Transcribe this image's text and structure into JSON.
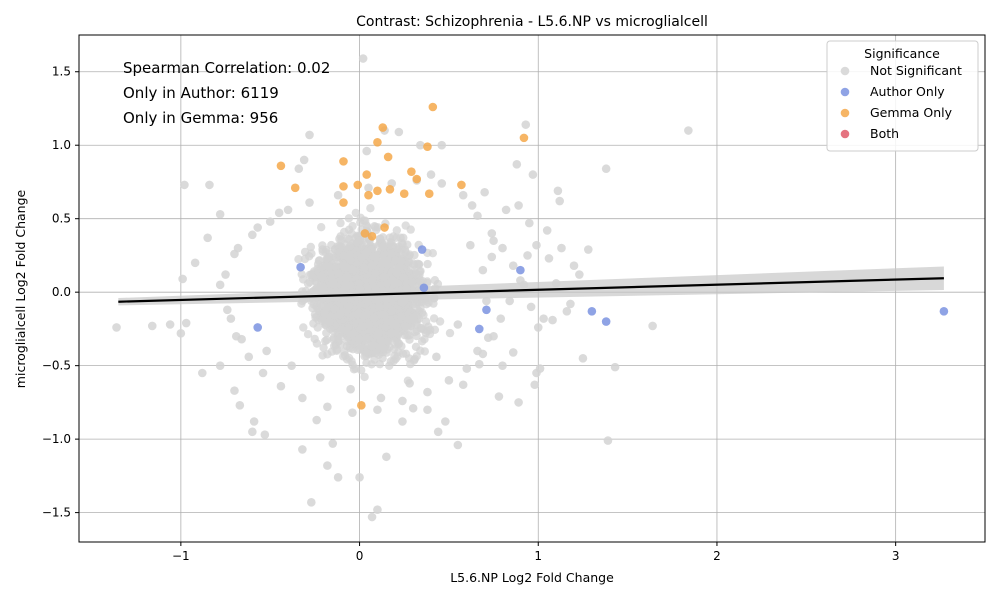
{
  "chart_data": {
    "type": "scatter",
    "title": "Contrast: Schizophrenia - L5.6.NP vs microglialcell",
    "xlabel": "L5.6.NP Log2 Fold Change",
    "ylabel": "microglialcell Log2 Fold Change",
    "xlim": [
      -1.57,
      3.5
    ],
    "ylim": [
      -1.7,
      1.75
    ],
    "x_ticks": [
      -1,
      0,
      1,
      2,
      3
    ],
    "x_tick_labels": [
      "−1",
      "0",
      "1",
      "2",
      "3"
    ],
    "y_ticks": [
      -1.5,
      -1.0,
      -0.5,
      0.0,
      0.5,
      1.0,
      1.5
    ],
    "y_tick_labels": [
      "−1.5",
      "−1.0",
      "−0.5",
      "0.0",
      "0.5",
      "1.0",
      "1.5"
    ],
    "grid": true,
    "annotations": [
      "Spearman Correlation: 0.02",
      "Only in Author: 6119",
      "Only in Gemma: 956"
    ],
    "legend": {
      "title": "Significance",
      "position": "top-right",
      "entries": [
        {
          "label": "Not Significant",
          "color": "#d3d3d3"
        },
        {
          "label": "Author Only",
          "color": "#7b93e0"
        },
        {
          "label": "Gemma Only",
          "color": "#f5a84a"
        },
        {
          "label": "Both",
          "color": "#e05a6a"
        }
      ]
    },
    "regression": {
      "x": [
        -1.35,
        3.27
      ],
      "y": [
        -0.065,
        0.095
      ],
      "ci_halfwidth_start": 0.025,
      "ci_halfwidth_end": 0.08
    },
    "series": [
      {
        "name": "Not Significant",
        "color": "#d3d3d3",
        "points": [
          [
            1.84,
            1.1
          ],
          [
            1.38,
            0.84
          ],
          [
            1.11,
            0.69
          ],
          [
            1.12,
            0.62
          ],
          [
            1.28,
            0.29
          ],
          [
            1.23,
            0.12
          ],
          [
            1.16,
            -0.13
          ],
          [
            1.25,
            -0.45
          ],
          [
            1.43,
            -0.51
          ],
          [
            1.39,
            -1.01
          ],
          [
            1.64,
            -0.23
          ],
          [
            0.93,
            1.14
          ],
          [
            0.88,
            0.87
          ],
          [
            0.89,
            0.59
          ],
          [
            0.97,
            0.8
          ],
          [
            0.95,
            0.47
          ],
          [
            1.05,
            0.42
          ],
          [
            1.06,
            0.23
          ],
          [
            0.99,
            0.32
          ],
          [
            0.94,
            0.25
          ],
          [
            0.92,
            0.05
          ],
          [
            0.96,
            -0.1
          ],
          [
            1.0,
            -0.24
          ],
          [
            1.03,
            -0.18
          ],
          [
            0.98,
            -0.63
          ],
          [
            0.89,
            -0.75
          ],
          [
            0.86,
            -0.41
          ],
          [
            0.8,
            -0.5
          ],
          [
            0.78,
            -0.71
          ],
          [
            0.74,
            0.24
          ],
          [
            0.7,
            0.68
          ],
          [
            0.63,
            0.59
          ],
          [
            0.62,
            0.32
          ],
          [
            0.71,
            -0.06
          ],
          [
            0.66,
            -0.4
          ],
          [
            0.58,
            -0.63
          ],
          [
            0.55,
            -1.04
          ],
          [
            0.44,
            -0.95
          ],
          [
            0.38,
            -0.8
          ],
          [
            0.34,
            1.0
          ],
          [
            0.46,
            1.0
          ],
          [
            0.4,
            0.8
          ],
          [
            0.14,
            1.1
          ],
          [
            0.22,
            1.09
          ],
          [
            0.04,
            0.96
          ],
          [
            0.02,
            1.59
          ],
          [
            -0.28,
            1.07
          ],
          [
            -0.31,
            0.9
          ],
          [
            -0.34,
            0.84
          ],
          [
            -0.98,
            0.73
          ],
          [
            -0.84,
            0.73
          ],
          [
            -0.78,
            0.53
          ],
          [
            -0.85,
            0.37
          ],
          [
            -0.99,
            0.09
          ],
          [
            -0.92,
            0.2
          ],
          [
            -1.06,
            -0.22
          ],
          [
            -1.0,
            -0.28
          ],
          [
            -1.36,
            -0.24
          ],
          [
            -1.16,
            -0.23
          ],
          [
            -0.97,
            -0.21
          ],
          [
            -0.88,
            -0.55
          ],
          [
            -0.78,
            -0.5
          ],
          [
            -0.7,
            -0.67
          ],
          [
            -0.67,
            -0.77
          ],
          [
            -0.59,
            -0.88
          ],
          [
            -0.6,
            -0.95
          ],
          [
            -0.53,
            -0.97
          ],
          [
            -0.32,
            -1.07
          ],
          [
            -0.24,
            -0.87
          ],
          [
            -0.18,
            -1.18
          ],
          [
            -0.15,
            -1.03
          ],
          [
            -0.12,
            -1.26
          ],
          [
            -0.27,
            -1.43
          ],
          [
            0.0,
            -1.26
          ],
          [
            0.07,
            -1.53
          ],
          [
            0.1,
            -1.48
          ],
          [
            0.15,
            -1.12
          ],
          [
            0.24,
            -0.88
          ],
          [
            0.3,
            -0.79
          ],
          [
            0.48,
            -0.88
          ],
          [
            0.67,
            -0.49
          ],
          [
            0.72,
            -0.31
          ],
          [
            0.55,
            -0.22
          ],
          [
            0.43,
            -0.44
          ],
          [
            0.28,
            -0.62
          ],
          [
            0.12,
            -0.72
          ],
          [
            -0.05,
            -0.66
          ],
          [
            -0.22,
            -0.58
          ],
          [
            -0.38,
            -0.5
          ],
          [
            -0.52,
            -0.4
          ],
          [
            -0.66,
            -0.32
          ],
          [
            -0.72,
            -0.18
          ],
          [
            -0.78,
            0.05
          ],
          [
            -0.7,
            0.26
          ],
          [
            -0.6,
            0.39
          ],
          [
            -0.5,
            0.48
          ],
          [
            -0.4,
            0.56
          ],
          [
            -0.28,
            0.61
          ],
          [
            -0.12,
            0.66
          ],
          [
            0.05,
            0.71
          ],
          [
            0.18,
            0.74
          ],
          [
            0.32,
            0.76
          ],
          [
            0.46,
            0.74
          ],
          [
            0.58,
            0.66
          ],
          [
            0.66,
            0.52
          ],
          [
            0.74,
            0.4
          ],
          [
            0.8,
            0.3
          ],
          [
            0.86,
            0.18
          ],
          [
            0.9,
            0.08
          ],
          [
            0.84,
            -0.06
          ],
          [
            0.79,
            -0.18
          ],
          [
            0.75,
            -0.3
          ],
          [
            0.69,
            -0.42
          ],
          [
            0.6,
            -0.52
          ],
          [
            0.5,
            -0.6
          ],
          [
            0.38,
            -0.68
          ],
          [
            0.24,
            -0.74
          ],
          [
            0.1,
            -0.8
          ],
          [
            -0.04,
            -0.82
          ],
          [
            -0.18,
            -0.78
          ],
          [
            -0.32,
            -0.72
          ],
          [
            -0.44,
            -0.64
          ],
          [
            -0.54,
            -0.55
          ],
          [
            -0.62,
            -0.44
          ],
          [
            -0.69,
            -0.3
          ],
          [
            -0.74,
            -0.12
          ],
          [
            -0.75,
            0.12
          ],
          [
            -0.68,
            0.3
          ],
          [
            -0.57,
            0.44
          ],
          [
            -0.45,
            0.54
          ],
          [
            1.08,
            -0.19
          ],
          [
            1.13,
            0.3
          ],
          [
            1.2,
            0.18
          ],
          [
            1.18,
            -0.08
          ],
          [
            1.1,
            0.06
          ],
          [
            0.99,
            -0.55
          ],
          [
            1.01,
            -0.52
          ],
          [
            0.82,
            0.56
          ],
          [
            0.75,
            0.35
          ],
          [
            0.69,
            0.15
          ]
        ]
      },
      {
        "name": "Author Only",
        "color": "#7b93e0",
        "points": [
          [
            3.27,
            -0.13
          ],
          [
            1.38,
            -0.2
          ],
          [
            1.3,
            -0.13
          ],
          [
            0.9,
            0.15
          ],
          [
            0.67,
            -0.25
          ],
          [
            0.71,
            -0.12
          ],
          [
            -0.57,
            -0.24
          ],
          [
            -0.33,
            0.17
          ],
          [
            0.35,
            0.29
          ],
          [
            0.36,
            0.03
          ]
        ]
      },
      {
        "name": "Gemma Only",
        "color": "#f5a84a",
        "points": [
          [
            0.41,
            1.26
          ],
          [
            0.13,
            1.12
          ],
          [
            0.92,
            1.05
          ],
          [
            0.1,
            1.02
          ],
          [
            0.38,
            0.99
          ],
          [
            0.16,
            0.92
          ],
          [
            -0.09,
            0.89
          ],
          [
            -0.44,
            0.86
          ],
          [
            0.29,
            0.82
          ],
          [
            0.04,
            0.8
          ],
          [
            0.32,
            0.77
          ],
          [
            0.57,
            0.73
          ],
          [
            -0.36,
            0.71
          ],
          [
            -0.01,
            0.73
          ],
          [
            -0.09,
            0.72
          ],
          [
            0.17,
            0.7
          ],
          [
            0.1,
            0.69
          ],
          [
            0.39,
            0.67
          ],
          [
            0.25,
            0.67
          ],
          [
            0.05,
            0.66
          ],
          [
            -0.09,
            0.61
          ],
          [
            0.03,
            0.4
          ],
          [
            0.07,
            0.38
          ],
          [
            0.14,
            0.44
          ],
          [
            0.01,
            -0.77
          ]
        ]
      },
      {
        "name": "Both",
        "color": "#e05a6a",
        "points": []
      }
    ]
  }
}
